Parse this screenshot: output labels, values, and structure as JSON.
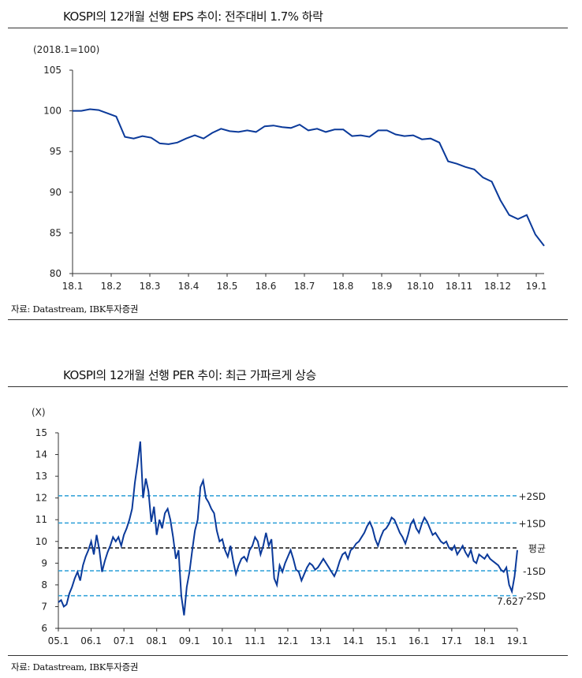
{
  "charts": [
    {
      "title": "KOSPI의 12개월 선행 EPS 추이: 전주대비 1.7% 하락",
      "source": "자료: Datastream, IBK투자증권"
    },
    {
      "title": "KOSPI의 12개월 선행 PER 추이: 최근 가파르게 상승",
      "source": "자료: Datastream, IBK투자증권"
    }
  ],
  "chart_data": [
    {
      "type": "line",
      "title": "KOSPI의 12개월 선행 EPS 추이: 전주대비 1.7% 하락",
      "ylabel": "(2018.1=100)",
      "ylim": [
        80,
        105
      ],
      "yticks": [
        80,
        85,
        90,
        95,
        100,
        105
      ],
      "xticks": [
        "18.1",
        "18.2",
        "18.3",
        "18.4",
        "18.5",
        "18.6",
        "18.7",
        "18.8",
        "18.9",
        "18.10",
        "18.11",
        "18.12",
        "19.1"
      ],
      "frequency": "weekly",
      "line_color": "#0b3a9a",
      "values": [
        100,
        100,
        100.2,
        100.1,
        99.7,
        99.3,
        96.8,
        96.6,
        96.9,
        96.7,
        96.0,
        95.9,
        96.1,
        96.6,
        97.0,
        96.6,
        97.3,
        97.8,
        97.5,
        97.4,
        97.6,
        97.4,
        98.1,
        98.2,
        98.0,
        97.9,
        98.3,
        97.6,
        97.8,
        97.4,
        97.7,
        97.7,
        96.9,
        97.0,
        96.8,
        97.6,
        97.6,
        97.1,
        96.9,
        97.0,
        96.5,
        96.6,
        96.1,
        93.8,
        93.5,
        93.1,
        92.8,
        91.8,
        91.3,
        89.0,
        87.2,
        86.7,
        87.2,
        84.8,
        83.4
      ]
    },
    {
      "type": "line",
      "title": "KOSPI의 12개월 선행 PER 추이: 최근 가파르게 상승",
      "ylabel": "(X)",
      "ylim": [
        6,
        15
      ],
      "yticks": [
        6,
        7,
        8,
        9,
        10,
        11,
        12,
        13,
        14,
        15
      ],
      "xticks": [
        "05.1",
        "06.1",
        "07.1",
        "08.1",
        "09.1",
        "10.1",
        "11.1",
        "12.1",
        "13.1",
        "14.1",
        "15.1",
        "16.1",
        "17.1",
        "18.1",
        "19.1"
      ],
      "frequency": "monthly",
      "line_color": "#0b3a9a",
      "reference_lines": [
        {
          "label": "+2SD",
          "value": 12.1,
          "color": "#2a9fd8"
        },
        {
          "label": "+1SD",
          "value": 10.85,
          "color": "#2a9fd8"
        },
        {
          "label": "평균",
          "value": 9.7,
          "color": "#111111"
        },
        {
          "label": "-1SD",
          "value": 8.65,
          "color": "#2a9fd8"
        },
        {
          "label": "-2SD",
          "value": 7.5,
          "color": "#2a9fd8"
        }
      ],
      "annotation": "7.627",
      "values": [
        7.2,
        7.3,
        7.0,
        7.1,
        7.6,
        7.9,
        8.3,
        8.6,
        8.2,
        8.9,
        9.3,
        9.6,
        10.0,
        9.4,
        10.3,
        9.6,
        8.6,
        9.1,
        9.5,
        9.8,
        10.2,
        10.0,
        10.2,
        9.8,
        10.3,
        10.6,
        11.0,
        11.5,
        12.7,
        13.6,
        14.6,
        12.0,
        12.9,
        12.3,
        10.9,
        11.6,
        10.3,
        11.0,
        10.6,
        11.3,
        11.5,
        11.0,
        10.2,
        9.2,
        9.6,
        7.5,
        6.6,
        7.9,
        8.6,
        9.6,
        10.5,
        11.0,
        12.5,
        12.8,
        12.0,
        11.8,
        11.5,
        11.3,
        10.5,
        10.0,
        10.1,
        9.6,
        9.3,
        9.8,
        9.1,
        8.5,
        8.9,
        9.2,
        9.3,
        9.1,
        9.6,
        9.8,
        10.2,
        10.0,
        9.4,
        9.8,
        10.4,
        9.8,
        10.1,
        8.3,
        8.0,
        8.9,
        8.6,
        9.0,
        9.3,
        9.6,
        9.2,
        8.7,
        8.6,
        8.2,
        8.5,
        8.8,
        9.0,
        8.9,
        8.7,
        8.8,
        9.0,
        9.2,
        9.0,
        8.8,
        8.6,
        8.4,
        8.7,
        9.1,
        9.4,
        9.5,
        9.2,
        9.6,
        9.7,
        9.9,
        10.0,
        10.2,
        10.4,
        10.7,
        10.9,
        10.6,
        10.1,
        9.8,
        10.2,
        10.5,
        10.6,
        10.8,
        11.1,
        11.0,
        10.7,
        10.4,
        10.2,
        9.9,
        10.3,
        10.8,
        11.0,
        10.6,
        10.4,
        10.8,
        11.1,
        10.9,
        10.6,
        10.3,
        10.4,
        10.2,
        10.0,
        9.9,
        10.0,
        9.7,
        9.6,
        9.8,
        9.4,
        9.6,
        9.8,
        9.5,
        9.3,
        9.6,
        9.1,
        9.0,
        9.4,
        9.3,
        9.2,
        9.4,
        9.2,
        9.1,
        9.0,
        8.9,
        8.7,
        8.6,
        8.8,
        8.0,
        7.7,
        8.4,
        9.6
      ]
    }
  ]
}
